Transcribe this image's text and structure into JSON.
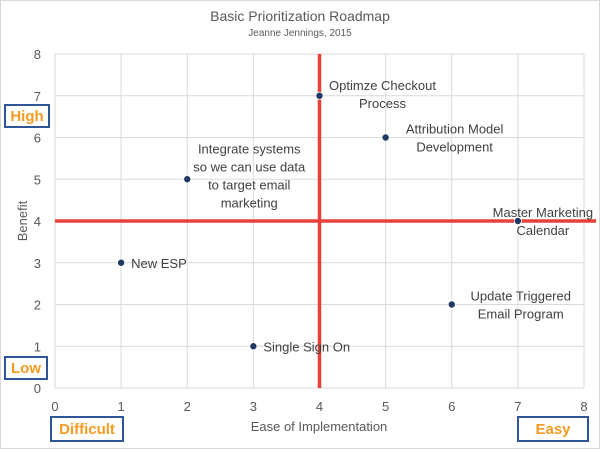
{
  "chart_data": {
    "type": "scatter",
    "title": "Basic Prioritization Roadmap",
    "subtitle": "Jeanne Jennings, 2015",
    "xlabel": "Ease of Implementation",
    "ylabel": "Benefit",
    "xlim": [
      0,
      8
    ],
    "ylim": [
      0,
      8
    ],
    "xticks": [
      0,
      1,
      2,
      3,
      4,
      5,
      6,
      7,
      8
    ],
    "yticks": [
      0,
      1,
      2,
      3,
      4,
      5,
      6,
      7,
      8
    ],
    "grid": true,
    "quadrant_lines": {
      "x": 4,
      "y": 4,
      "color": "#e8413a"
    },
    "point_color": "#1f3864",
    "points": [
      {
        "x": 1,
        "y": 3,
        "label": [
          "New ESP"
        ]
      },
      {
        "x": 2,
        "y": 5,
        "label": [
          "Integrate systems",
          "so we can use data",
          "to target email",
          "marketing"
        ]
      },
      {
        "x": 3,
        "y": 1,
        "label": [
          "Single Sign On"
        ]
      },
      {
        "x": 4,
        "y": 7,
        "label": [
          "Optimze Checkout",
          "Process"
        ]
      },
      {
        "x": 5,
        "y": 6,
        "label": [
          "Attribution Model",
          "Development"
        ]
      },
      {
        "x": 6,
        "y": 2,
        "label": [
          "Update Triggered",
          "Email Program"
        ]
      },
      {
        "x": 7,
        "y": 4,
        "label": [
          "Master Marketing",
          "Calendar"
        ]
      }
    ]
  },
  "callouts": {
    "high": "High",
    "low": "Low",
    "difficult": "Difficult",
    "easy": "Easy"
  },
  "colors": {
    "callout_text": "#f59b1f",
    "callout_border": "#2f5597",
    "grid": "#d9d9d9"
  }
}
